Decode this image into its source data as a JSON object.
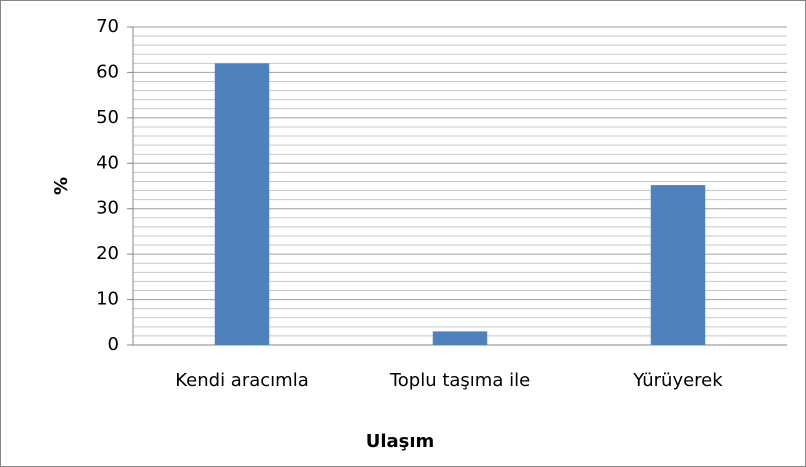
{
  "chart_data": {
    "type": "bar",
    "categories": [
      "Kendi aracımla",
      "Toplu taşıma ile",
      "Yürüyerek"
    ],
    "values": [
      62,
      3,
      35.2
    ],
    "color": "#4f81bd",
    "ylim": [
      0,
      70
    ],
    "yticks": [
      0,
      10,
      20,
      30,
      40,
      50,
      60,
      70
    ],
    "grid": true,
    "y_label": "%",
    "x_label": "Ulaşım"
  }
}
